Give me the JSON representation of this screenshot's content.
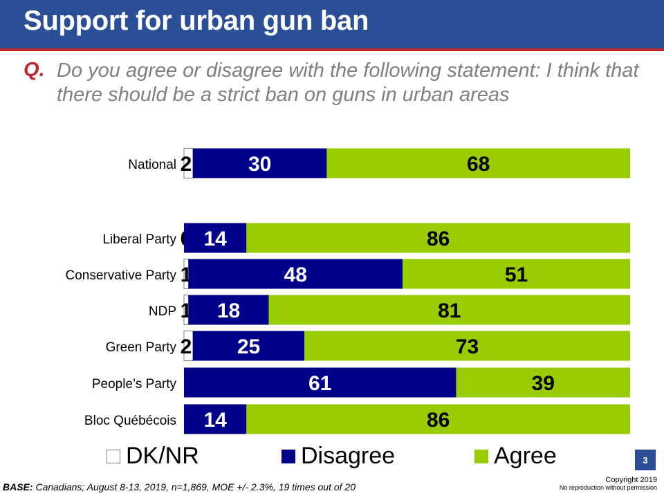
{
  "title": "Support for urban gun ban",
  "question": {
    "label": "Q.",
    "text": "Do you agree or disagree with the following statement: I think that there should be a strict ban on guns in urban areas"
  },
  "colors": {
    "header": "#2b4f96",
    "accent_red": "#c0272d",
    "dk_nr": "#ffffff",
    "disagree": "#00008b",
    "agree": "#99cc00"
  },
  "chart_data": {
    "type": "bar",
    "orientation": "horizontal",
    "stacked": true,
    "xlim": [
      0,
      100
    ],
    "categories": [
      "National",
      "Liberal Party",
      "Conservative  Party",
      "NDP",
      "Green Party",
      "People’s Party",
      "Bloc Québécois"
    ],
    "series": [
      {
        "name": "DK/NR",
        "values": [
          2,
          0,
          1,
          1,
          2,
          0,
          0
        ],
        "labels": [
          "2",
          "0",
          "1",
          "1",
          "2",
          "",
          ""
        ]
      },
      {
        "name": "Disagree",
        "values": [
          30,
          14,
          48,
          18,
          25,
          61,
          14
        ],
        "labels": [
          "30",
          "14",
          "48",
          "18",
          "25",
          "61",
          "14"
        ]
      },
      {
        "name": "Agree",
        "values": [
          68,
          86,
          51,
          81,
          73,
          39,
          86
        ],
        "labels": [
          "68",
          "86",
          "51",
          "81",
          "73",
          "39",
          "86"
        ]
      }
    ],
    "legend_position": "bottom",
    "grid": false
  },
  "legend": [
    {
      "name": "DK/NR",
      "color": "#ffffff"
    },
    {
      "name": "Disagree",
      "color": "#00008b"
    },
    {
      "name": "Agree",
      "color": "#99cc00"
    }
  ],
  "page_number": "3",
  "base": {
    "label": "BASE:",
    "text": " Canadians; August 8-13, 2019, n=1,869, MOE +/- 2.3%, 19 times out of 20"
  },
  "copyright": {
    "line1": "Copyright 2019",
    "line2": "No reproduction without permission"
  }
}
